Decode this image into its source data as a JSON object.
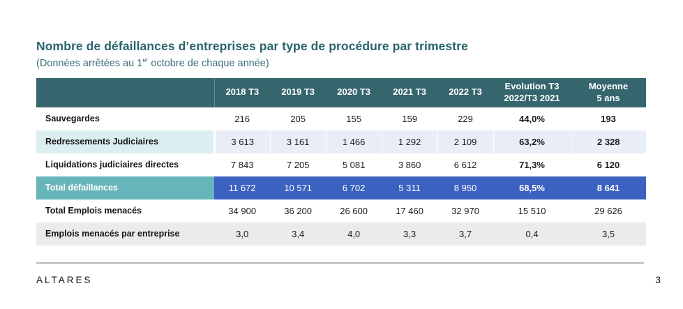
{
  "page": {
    "title": "Nombre de défaillances d’entreprises par type de procédure par trimestre",
    "subtitle_prefix": "(Données arrêtées au 1",
    "subtitle_sup": "er",
    "subtitle_suffix": " octobre de chaque année)",
    "footer_brand": "ALTARES",
    "page_number": "3"
  },
  "table": {
    "header": {
      "quarters": [
        "2018 T3",
        "2019 T3",
        "2020 T3",
        "2021 T3",
        "2022 T3"
      ],
      "evolution": {
        "line1": "Evolution T3",
        "line2": "2022/T3 2021"
      },
      "moyenne": {
        "line1": "Moyenne",
        "line2": "5 ans"
      }
    },
    "rows": [
      {
        "label": "Sauvegardes",
        "values": [
          "216",
          "205",
          "155",
          "159",
          "229"
        ],
        "evolution": "44,0%",
        "moyenne": "193"
      },
      {
        "label": "Redressements Judiciaires",
        "values": [
          "3 613",
          "3 161",
          "1 466",
          "1 292",
          "2 109"
        ],
        "evolution": "63,2%",
        "moyenne": "2 328"
      },
      {
        "label": "Liquidations judiciaires directes",
        "values": [
          "7 843",
          "7 205",
          "5 081",
          "3 860",
          "6 612"
        ],
        "evolution": "71,3%",
        "moyenne": "6 120"
      },
      {
        "label": "Total défaillances",
        "values": [
          "11 672",
          "10 571",
          "6 702",
          "5 311",
          "8 950"
        ],
        "evolution": "68,5%",
        "moyenne": "8 641"
      },
      {
        "label": "Total Emplois menacés",
        "values": [
          "34 900",
          "36 200",
          "26 600",
          "17 460",
          "32 970"
        ],
        "evolution": "15 510",
        "moyenne": "29 626"
      },
      {
        "label": "Emplois menacés par entreprise",
        "values": [
          "3,0",
          "3,4",
          "4,0",
          "3,3",
          "3,7"
        ],
        "evolution": "0,4",
        "moyenne": "3,5"
      }
    ],
    "colors": {
      "header_bg": "#35656d",
      "tint_label_bg": "#dceef0",
      "tint_data_bg": "#e8edf8",
      "highlight_label_bg": "#68b4bb",
      "highlight_data_bg": "#3b61c1",
      "gray_row_bg": "#ebebeb",
      "title_teal": "#2a656e"
    }
  }
}
